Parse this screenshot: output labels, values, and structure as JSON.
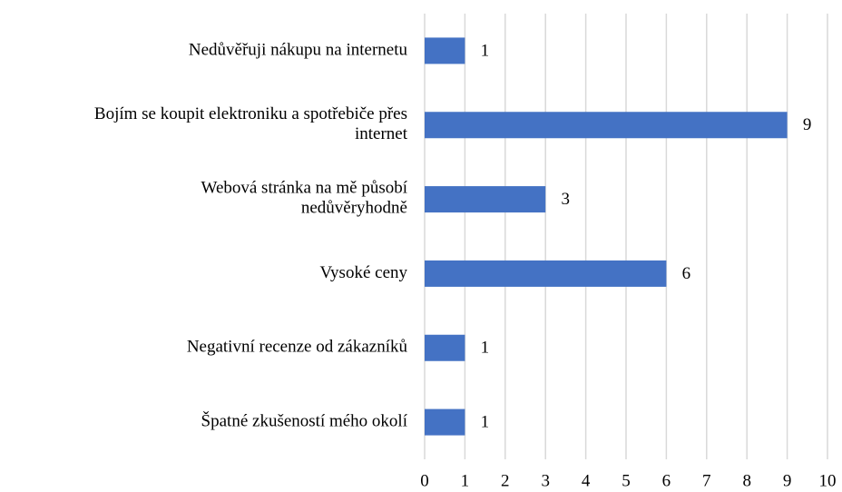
{
  "chart_data": {
    "type": "barh",
    "categories": [
      "Nedůvěřuji nákupu na internetu",
      "Bojím se koupit elektroniku a spotřebiče přes\ninternet",
      "Webová stránka na mě působí\nnedůvěryhodně",
      "Vysoké ceny",
      "Negativní recenze od zákazníků",
      "Špatné zkušeností mého okolí"
    ],
    "values": [
      1,
      9,
      3,
      6,
      1,
      1
    ],
    "color": "#4472c4",
    "xlim": [
      0,
      10
    ],
    "xticks": [
      0,
      1,
      2,
      3,
      4,
      5,
      6,
      7,
      8,
      9,
      10
    ],
    "grid": true
  }
}
